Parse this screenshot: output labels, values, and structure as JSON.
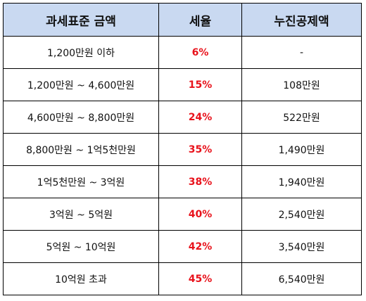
{
  "table": {
    "headers": {
      "bracket": "과세표준 금액",
      "rate": "세율",
      "deduction": "누진공제액"
    },
    "rows": [
      {
        "bracket": "1,200만원 이하",
        "rate": "6%",
        "deduction": "-"
      },
      {
        "bracket": "1,200만원 ~ 4,600만원",
        "rate": "15%",
        "deduction": "108만원"
      },
      {
        "bracket": "4,600만원 ~ 8,800만원",
        "rate": "24%",
        "deduction": "522만원"
      },
      {
        "bracket": "8,800만원 ~ 1억5천만원",
        "rate": "35%",
        "deduction": "1,490만원"
      },
      {
        "bracket": "1억5천만원 ~ 3억원",
        "rate": "38%",
        "deduction": "1,940만원"
      },
      {
        "bracket": "3억원 ~ 5억원",
        "rate": "40%",
        "deduction": "2,540만원"
      },
      {
        "bracket": "5억원 ~ 10억원",
        "rate": "42%",
        "deduction": "3,540만원"
      },
      {
        "bracket": "10억원 초과",
        "rate": "45%",
        "deduction": "6,540만원"
      }
    ]
  },
  "colors": {
    "header_background": "#c9d9f1",
    "rate_text": "#e8121b",
    "border": "#000000"
  }
}
